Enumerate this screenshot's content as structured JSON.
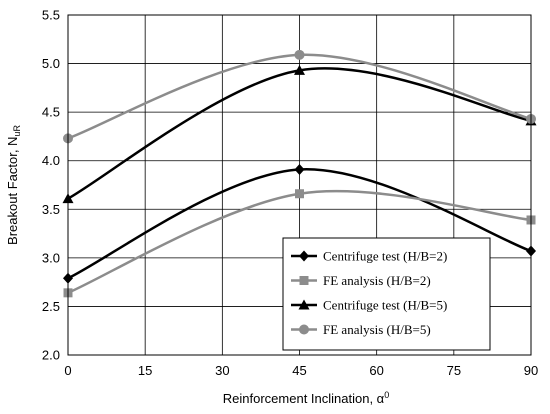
{
  "chart_data": {
    "type": "line",
    "xlabel": "Reinforcement Inclination, α",
    "xlabel_sup": "0",
    "ylabel": "Breakout Factor, N",
    "ylabel_sub": "uR",
    "xlim": [
      0,
      90
    ],
    "ylim": [
      2.0,
      5.5
    ],
    "x_ticks": [
      "0",
      "15",
      "30",
      "45",
      "60",
      "75",
      "90"
    ],
    "y_ticks": [
      "2.0",
      "2.5",
      "3.0",
      "3.5",
      "4.0",
      "4.5",
      "5.0",
      "5.5"
    ],
    "grid": true,
    "legend_position": "bottom-right",
    "series": [
      {
        "name": "Centrifuge test (H/B=2)",
        "marker": "diamond",
        "color": "#000000",
        "x": [
          0,
          45,
          90
        ],
        "y": [
          2.79,
          3.91,
          3.07
        ]
      },
      {
        "name": "FE analysis (H/B=2)",
        "marker": "square",
        "color": "#8c8c8c",
        "x": [
          0,
          45,
          90
        ],
        "y": [
          2.64,
          3.66,
          3.39
        ]
      },
      {
        "name": "Centrifuge test (H/B=5)",
        "marker": "triangle",
        "color": "#000000",
        "x": [
          0,
          45,
          90
        ],
        "y": [
          3.61,
          4.93,
          4.41
        ]
      },
      {
        "name": "FE analysis (H/B=5)",
        "marker": "circle",
        "color": "#8c8c8c",
        "x": [
          0,
          45,
          90
        ],
        "y": [
          4.23,
          5.09,
          4.43
        ]
      }
    ]
  }
}
